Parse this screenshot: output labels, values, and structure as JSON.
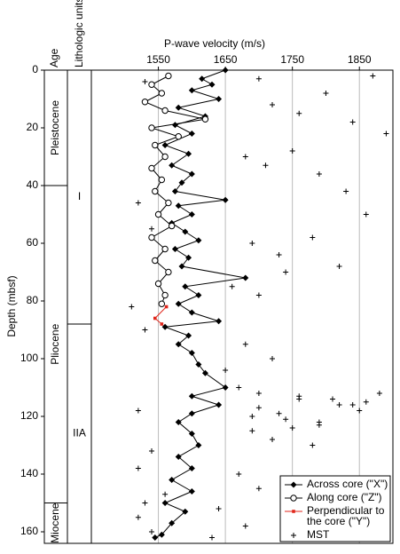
{
  "chart_data": {
    "type": "scatter",
    "title": "P-wave velocity (m/s)",
    "ylabel": "Depth (mbsf)",
    "column_headers": [
      "Age",
      "Lithologic units/subunits"
    ],
    "ages": [
      {
        "label": "Pleistocene",
        "top": 0,
        "bottom": 40
      },
      {
        "label": "Pliocene",
        "top": 40,
        "bottom": 150
      },
      {
        "label": "Miocene",
        "top": 150,
        "bottom": 164
      }
    ],
    "units": [
      {
        "label": "I",
        "top": 0,
        "bottom": 88
      },
      {
        "label": "IIA",
        "top": 88,
        "bottom": 164
      }
    ],
    "xlim": [
      1450,
      1900
    ],
    "ylim": [
      0,
      164
    ],
    "xticks": [
      1550,
      1650,
      1750,
      1850
    ],
    "yticks": [
      0,
      20,
      40,
      60,
      80,
      100,
      120,
      140,
      160
    ],
    "grid": true,
    "legend": "lower right",
    "series": [
      {
        "name": "Across core (\"X\")",
        "color": "#000000",
        "marker": "diamond",
        "line": true,
        "x": [
          1650,
          1615,
          1630,
          1600,
          1640,
          1580,
          1620,
          1575,
          1600,
          1560,
          1595,
          1570,
          1600,
          1585,
          1575,
          1650,
          1580,
          1600,
          1570,
          1590,
          1610,
          1575,
          1595,
          1585,
          1680,
          1590,
          1610,
          1580,
          1600,
          1640,
          1560,
          1595,
          1580,
          1600,
          1610,
          1620,
          1650,
          1600,
          1640,
          1600,
          1580,
          1600,
          1610,
          1580,
          1600,
          1570,
          1600,
          1560,
          1590,
          1570,
          1555,
          1545
        ],
        "y": [
          0,
          3,
          5,
          7,
          10,
          13,
          16,
          19,
          22,
          26,
          29,
          33,
          36,
          39,
          42,
          45,
          47,
          50,
          53,
          56,
          59,
          62,
          65,
          68,
          72,
          75,
          78,
          81,
          84,
          87,
          89,
          92,
          95,
          98,
          102,
          105,
          110,
          113,
          116,
          119,
          122,
          126,
          130,
          134,
          138,
          142,
          146,
          150,
          153,
          157,
          161,
          162
        ]
      },
      {
        "name": "Along core (\"Z\")",
        "color": "#000000",
        "marker": "circle",
        "line": true,
        "x": [
          1565,
          1540,
          1555,
          1530,
          1560,
          1620,
          1540,
          1580,
          1545,
          1560,
          1540,
          1555,
          1545,
          1565,
          1550,
          1570,
          1540,
          1560,
          1545,
          1565,
          1550,
          1560,
          1555
        ],
        "y": [
          2,
          5,
          8,
          11,
          14,
          17,
          20,
          23,
          26,
          30,
          34,
          38,
          42,
          46,
          50,
          54,
          58,
          62,
          66,
          70,
          74,
          78,
          81
        ]
      },
      {
        "name": "Perpendicular to the core (\"Y\")",
        "color": "#e0261b",
        "marker": "square",
        "line": true,
        "x": [
          1562,
          1545,
          1555
        ],
        "y": [
          82,
          86,
          88
        ]
      },
      {
        "name": "MST",
        "color": "#000000",
        "marker": "plus",
        "line": false,
        "x": [
          1530,
          1700,
          1720,
          1760,
          1800,
          1840,
          1870,
          1890,
          1680,
          1710,
          1750,
          1790,
          1830,
          1860,
          1520,
          1540,
          1690,
          1730,
          1780,
          1820,
          1660,
          1700,
          1740,
          1510,
          1530,
          1680,
          1720,
          1650,
          1700,
          1760,
          1810,
          1860,
          1520,
          1690,
          1740,
          1790,
          1840,
          1880,
          1670,
          1700,
          1730,
          1760,
          1790,
          1820,
          1850,
          1690,
          1720,
          1750,
          1780,
          1540,
          1520,
          1670,
          1700,
          1560,
          1530,
          1640,
          1520,
          1680,
          1540,
          1630
        ],
        "y": [
          4,
          3,
          12,
          15,
          8,
          18,
          2,
          22,
          30,
          33,
          28,
          36,
          42,
          50,
          46,
          55,
          60,
          64,
          58,
          68,
          75,
          78,
          70,
          82,
          90,
          95,
          100,
          104,
          112,
          113,
          114,
          115,
          118,
          120,
          121,
          123,
          116,
          112,
          110,
          117,
          119,
          114,
          122,
          116,
          118,
          125,
          128,
          124,
          130,
          132,
          138,
          140,
          145,
          147,
          150,
          152,
          155,
          158,
          160,
          162
        ]
      }
    ]
  }
}
